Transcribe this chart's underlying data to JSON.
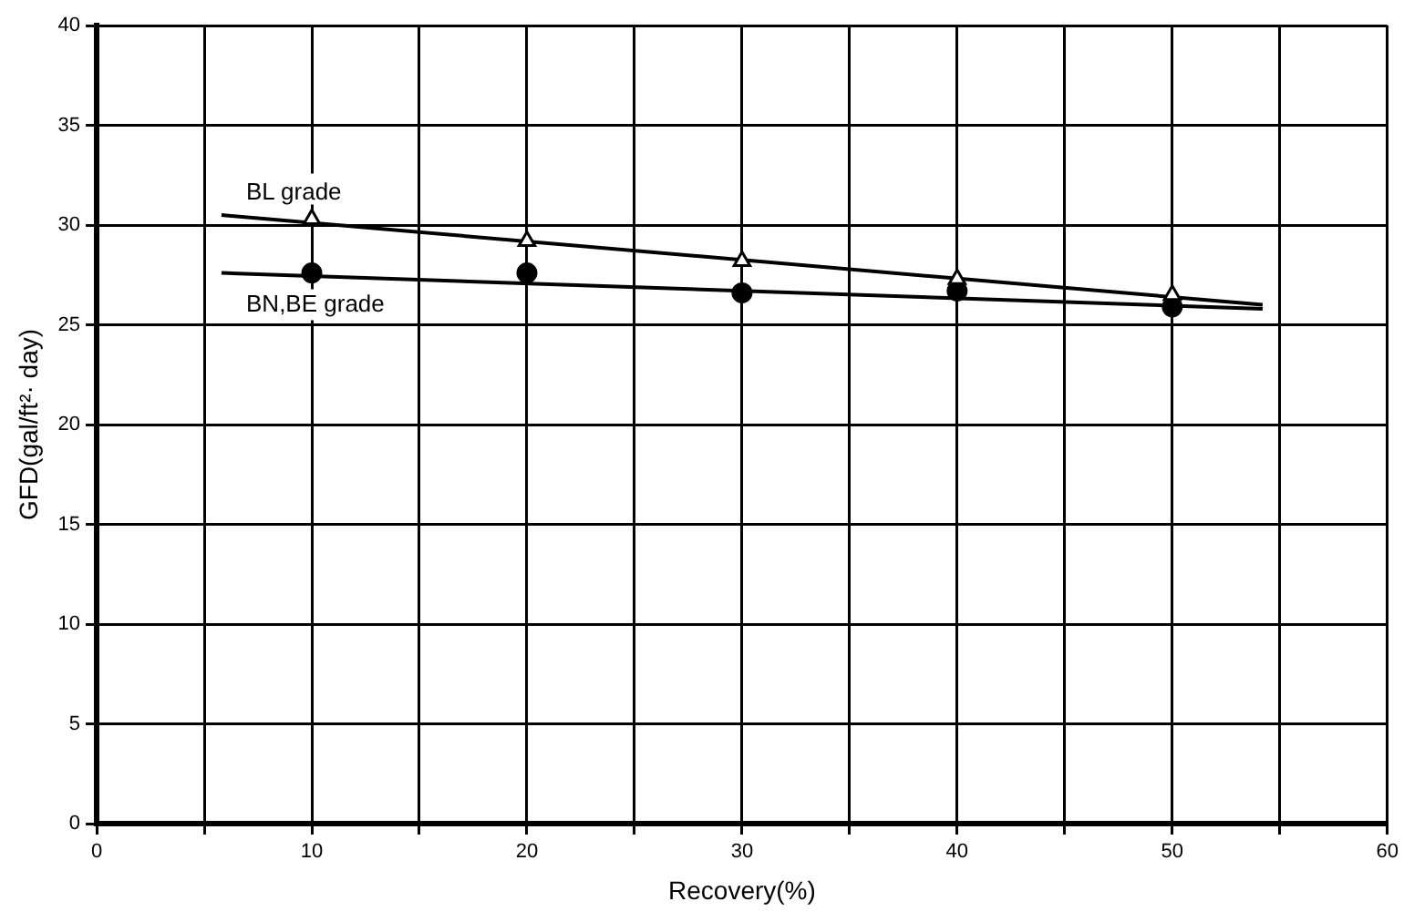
{
  "chart_data": {
    "type": "scatter",
    "xlabel": "Recovery(%)",
    "ylabel": "GFD(gal/ft²· day)",
    "xlim": [
      0,
      60
    ],
    "ylim": [
      0,
      40
    ],
    "xticks": [
      0,
      {
        "value": 5,
        "label": null
      },
      10,
      {
        "value": 15,
        "label": null
      },
      20,
      {
        "value": 25,
        "label": null
      },
      30,
      {
        "value": 35,
        "label": null
      },
      40,
      {
        "value": 45,
        "label": null
      },
      50,
      {
        "value": 55,
        "label": null
      },
      60
    ],
    "yticks": [
      0,
      5,
      10,
      15,
      20,
      25,
      30,
      35,
      40
    ],
    "grid": true,
    "legend": false,
    "series": [
      {
        "name": "BL grade",
        "marker": "triangle",
        "color": "#000000",
        "x": [
          10,
          20,
          30,
          40,
          50
        ],
        "values": [
          30.3,
          29.2,
          28.2,
          27.3,
          26.5
        ]
      },
      {
        "name": "BN,BE grade",
        "marker": "circle",
        "color": "#000000",
        "x": [
          10,
          20,
          30,
          40,
          50
        ],
        "values": [
          27.6,
          27.6,
          26.6,
          26.7,
          25.9
        ]
      },
      {
        "type": "line",
        "marker": "none",
        "color": "#000000",
        "x": [
          5.8,
          54.2
        ],
        "values": [
          30.5,
          26.0
        ]
      },
      {
        "type": "line",
        "marker": "none",
        "color": "#000000",
        "x": [
          5.8,
          54.2
        ],
        "values": [
          27.6,
          25.8
        ]
      }
    ]
  }
}
